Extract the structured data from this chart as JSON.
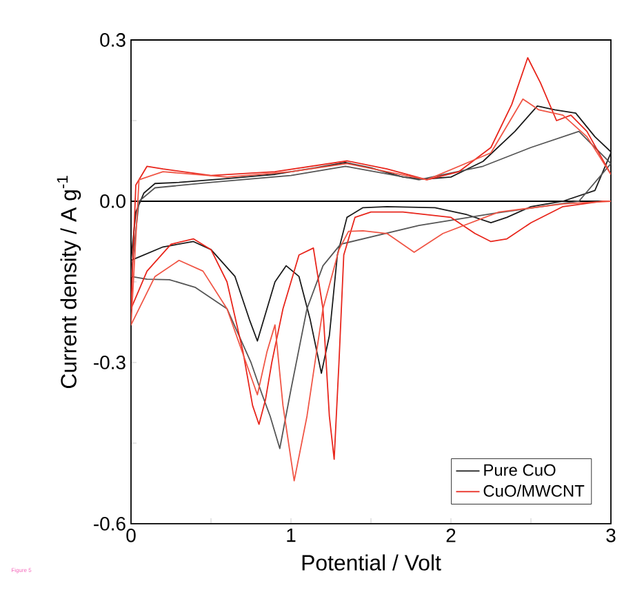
{
  "chart_data": {
    "type": "line",
    "xlabel": "Potential / Volt",
    "ylabel": "Current density / A g$^{-1}$",
    "xlim": [
      0,
      3
    ],
    "ylim": [
      -0.6,
      0.3
    ],
    "xticks": [
      0,
      {
        "value": 0.5,
        "label": null
      },
      1,
      {
        "value": 1.5,
        "label": null
      },
      2,
      {
        "value": 2.5,
        "label": null
      },
      3
    ],
    "yticks": [
      {
        "value": -0.6,
        "label": "-0.6"
      },
      {
        "value": -0.45,
        "label": null
      },
      {
        "value": -0.3,
        "label": "-0.3"
      },
      {
        "value": -0.15,
        "label": null
      },
      {
        "value": 0,
        "label": "0.0"
      },
      {
        "value": 0.15,
        "label": null
      },
      {
        "value": 0.3,
        "label": "0.3"
      }
    ],
    "ref_lines": [
      {
        "axis": "y",
        "value": 0,
        "label": null,
        "color": "#000000"
      }
    ],
    "legend": "bottom right",
    "annotations": [
      "Figure 5"
    ],
    "series": [
      {
        "name": "Pure CuO",
        "color": "#1a1a1a",
        "x": [
          3.0,
          2.9,
          2.7,
          2.5,
          2.35,
          2.25,
          2.1,
          1.9,
          1.6,
          1.45,
          1.35,
          1.29,
          1.24,
          1.19,
          1.12,
          1.05,
          0.97,
          0.9,
          0.84,
          0.79,
          0.74,
          0.65,
          0.5,
          0.39,
          0.2,
          0.04,
          0.0,
          0.03,
          0.08,
          0.15,
          0.3,
          0.6,
          0.9,
          1.15,
          1.34,
          1.5,
          1.7,
          1.83,
          2.0,
          2.2,
          2.4,
          2.54,
          2.65,
          2.78,
          2.9,
          3.0
        ],
        "values": [
          0.09,
          0.02,
          0.0,
          -0.01,
          -0.03,
          -0.04,
          -0.025,
          -0.012,
          -0.01,
          -0.012,
          -0.03,
          -0.1,
          -0.25,
          -0.32,
          -0.22,
          -0.14,
          -0.12,
          -0.15,
          -0.21,
          -0.26,
          -0.22,
          -0.14,
          -0.09,
          -0.075,
          -0.085,
          -0.105,
          -0.11,
          -0.02,
          0.015,
          0.033,
          0.035,
          0.042,
          0.05,
          0.062,
          0.072,
          0.062,
          0.045,
          0.041,
          0.045,
          0.074,
          0.13,
          0.177,
          0.17,
          0.164,
          0.12,
          0.092
        ]
      },
      {
        "color": "#555555",
        "x": [
          3.0,
          2.8,
          2.26,
          1.8,
          1.31,
          1.2,
          1.1,
          1.0,
          0.93,
          0.87,
          0.82,
          0.75,
          0.6,
          0.4,
          0.24,
          0.1,
          0.0
        ],
        "values": [
          0.07,
          0.0,
          -0.023,
          -0.045,
          -0.08,
          -0.12,
          -0.2,
          -0.35,
          -0.46,
          -0.4,
          -0.36,
          -0.3,
          -0.2,
          -0.16,
          -0.146,
          -0.145,
          -0.14
        ]
      },
      {
        "color": "#555555",
        "x": [
          0.0,
          0.05,
          0.15,
          0.5,
          1.0,
          1.34,
          1.8,
          2.2,
          2.5,
          2.8,
          3.0
        ],
        "values": [
          -0.14,
          0.0,
          0.025,
          0.035,
          0.048,
          0.065,
          0.04,
          0.065,
          0.1,
          0.13,
          0.07
        ]
      },
      {
        "name": "CuO/MWCNT",
        "color": "#e8251b",
        "x": [
          3.0,
          2.95,
          2.7,
          2.5,
          2.35,
          2.25,
          2.15,
          2.0,
          1.7,
          1.5,
          1.4,
          1.33,
          1.3,
          1.27,
          1.24,
          1.2,
          1.14,
          1.05,
          0.95,
          0.88,
          0.84,
          0.8,
          0.76,
          0.7,
          0.6,
          0.5,
          0.39,
          0.25,
          0.1,
          0.0,
          0.03,
          0.1,
          0.2,
          0.5,
          0.9,
          1.35,
          1.6,
          1.85,
          2.05,
          2.25,
          2.38,
          2.48,
          2.56,
          2.66,
          2.75,
          2.85,
          3.0
        ],
        "values": [
          0.0,
          0.0,
          -0.01,
          -0.04,
          -0.07,
          -0.075,
          -0.06,
          -0.03,
          -0.02,
          -0.02,
          -0.03,
          -0.1,
          -0.3,
          -0.48,
          -0.4,
          -0.2,
          -0.087,
          -0.1,
          -0.2,
          -0.3,
          -0.37,
          -0.415,
          -0.38,
          -0.28,
          -0.15,
          -0.09,
          -0.07,
          -0.08,
          -0.13,
          -0.2,
          0.03,
          0.065,
          0.06,
          0.048,
          0.055,
          0.075,
          0.06,
          0.04,
          0.055,
          0.1,
          0.18,
          0.267,
          0.22,
          0.15,
          0.16,
          0.13,
          0.05
        ]
      },
      {
        "color": "#f05545",
        "x": [
          3.0,
          2.7,
          2.3,
          1.95,
          1.77,
          1.6,
          1.45,
          1.36,
          1.3,
          1.2,
          1.1,
          1.02,
          0.95,
          0.9,
          0.85,
          0.79,
          0.6,
          0.45,
          0.3,
          0.15,
          0.0,
          0.05,
          0.2,
          0.6,
          1.0,
          1.35,
          1.85,
          2.25,
          2.45,
          2.55,
          2.7,
          2.85,
          3.0
        ],
        "values": [
          0.0,
          -0.005,
          -0.02,
          -0.06,
          -0.095,
          -0.06,
          -0.055,
          -0.056,
          -0.09,
          -0.2,
          -0.4,
          -0.52,
          -0.38,
          -0.23,
          -0.28,
          -0.36,
          -0.2,
          -0.13,
          -0.11,
          -0.14,
          -0.23,
          0.04,
          0.055,
          0.045,
          0.055,
          0.07,
          0.04,
          0.09,
          0.19,
          0.17,
          0.16,
          0.12,
          0.05
        ]
      }
    ]
  }
}
